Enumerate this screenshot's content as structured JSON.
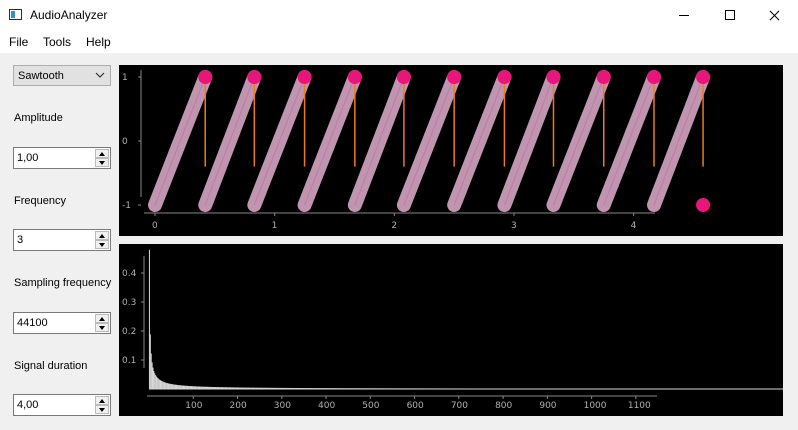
{
  "window": {
    "title": "AudioAnalyzer",
    "icon": "app-window-icon"
  },
  "menu": [
    "File",
    "Tools",
    "Help"
  ],
  "controls": {
    "waveform": "Sawtooth",
    "amplitude_label": "Amplitude",
    "amplitude_value": "1,00",
    "frequency_label": "Frequency",
    "frequency_value": "3",
    "sampling_label": "Sampling frequency",
    "sampling_value": "44100",
    "duration_label": "Signal duration",
    "duration_value": "4,00"
  },
  "colors": {
    "plot_bg": "#000000",
    "wave_band": "#d4a6c4",
    "marker": "#e8157a",
    "drop_line": "#f07a18",
    "bars": "#d8d8d8"
  },
  "chart_data": [
    {
      "type": "line",
      "title": "",
      "xlabel": "",
      "ylabel": "",
      "xlim": [
        -0.1,
        4.6
      ],
      "ylim": [
        -1.3,
        1.15
      ],
      "x_ticks": [
        "0",
        "1",
        "2",
        "3",
        "4"
      ],
      "y_ticks": [
        "1",
        "0",
        "-1"
      ],
      "series": [
        {
          "x": [
            0.0,
            0.42,
            0.42,
            0.83,
            0.83,
            1.25,
            1.25,
            1.67,
            1.67,
            2.08,
            2.08,
            2.5,
            2.5,
            2.92,
            2.92,
            3.33,
            3.33,
            3.75,
            3.75,
            4.17,
            4.17,
            4.58,
            4.58
          ],
          "y": [
            -1,
            1,
            -1,
            1,
            -1,
            1,
            -1,
            1,
            -1,
            1,
            -1,
            1,
            -1,
            1,
            -1,
            1,
            -1,
            1,
            -1,
            1,
            -1,
            1,
            -1
          ]
        }
      ]
    },
    {
      "type": "bar",
      "title": "",
      "xlabel": "",
      "ylabel": "",
      "xlim": [
        0,
        1150
      ],
      "ylim": [
        0,
        0.5
      ],
      "x_ticks": [
        "100",
        "200",
        "300",
        "400",
        "500",
        "600",
        "700",
        "800",
        "900",
        "1000",
        "1100"
      ],
      "y_ticks": [
        "0.4",
        "0.3",
        "0.2",
        "0.1"
      ],
      "peaks": [
        {
          "x": 1,
          "y": 0.48
        },
        {
          "x": 3,
          "y": 0.42
        },
        {
          "x": 5,
          "y": 0.3
        },
        {
          "x": 7,
          "y": 0.22
        },
        {
          "x": 9,
          "y": 0.17
        }
      ]
    }
  ]
}
